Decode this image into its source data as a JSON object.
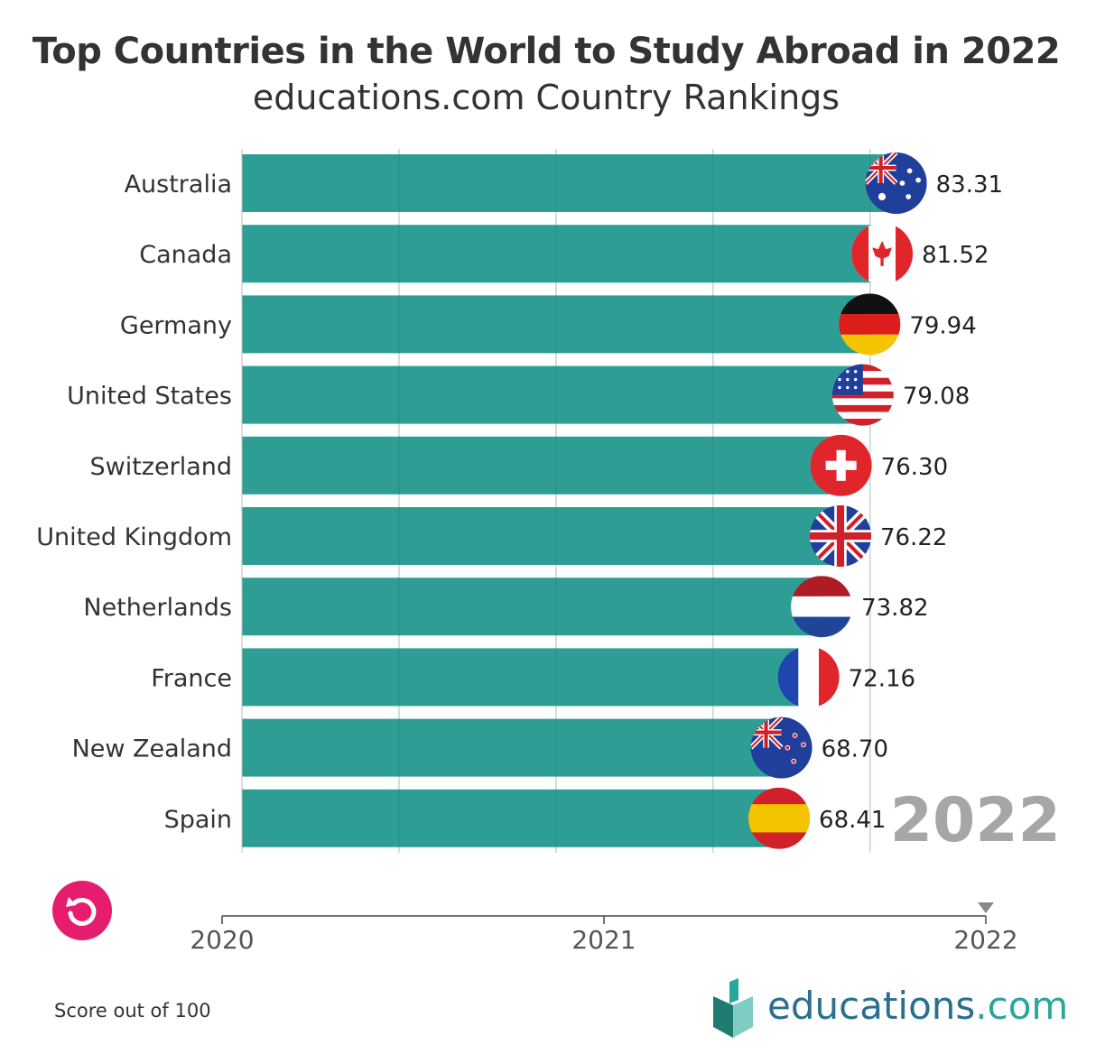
{
  "title": "Top Countries in the World to Study Abroad in 2022",
  "subtitle": "educations.com Country Rankings",
  "footnote": "Score out of 100",
  "current_year": "2022",
  "timeline": {
    "ticks": [
      "2020",
      "2021",
      "2022"
    ],
    "position": "2022"
  },
  "brand": {
    "name": "educations",
    "suffix": ".com"
  },
  "colors": {
    "bar": "#2e9e94",
    "grid": "#1f7f77",
    "replay": "#e61d6e",
    "year_watermark": "#a6a6a6"
  },
  "chart_data": {
    "type": "bar",
    "orientation": "horizontal",
    "title": "Top Countries in the World to Study Abroad in 2022",
    "subtitle": "educations.com Country Rankings",
    "categories": [
      "Australia",
      "Canada",
      "Germany",
      "United States",
      "Switzerland",
      "United Kingdom",
      "Netherlands",
      "France",
      "New Zealand",
      "Spain"
    ],
    "values": [
      83.31,
      81.52,
      79.94,
      79.08,
      76.3,
      76.22,
      73.82,
      72.16,
      68.7,
      68.41
    ],
    "value_labels": [
      "83.31",
      "81.52",
      "79.94",
      "79.08",
      "76.30",
      "76.22",
      "73.82",
      "72.16",
      "68.70",
      "68.41"
    ],
    "flags": [
      "australia-flag",
      "canada-flag",
      "germany-flag",
      "united-states-flag",
      "switzerland-flag",
      "united-kingdom-flag",
      "netherlands-flag",
      "france-flag",
      "new-zealand-flag",
      "spain-flag"
    ],
    "xlim": [
      0,
      84.5
    ],
    "grid": true,
    "legend": "none"
  }
}
